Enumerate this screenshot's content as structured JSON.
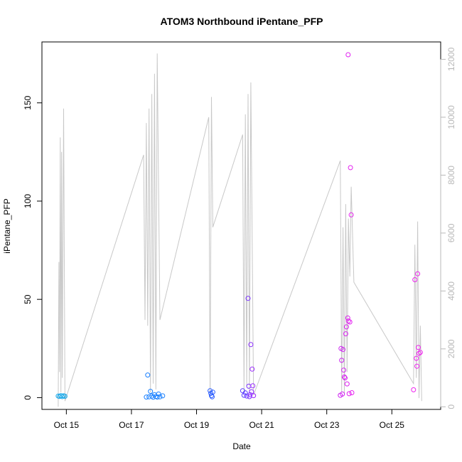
{
  "chart_data": {
    "type": "scatter",
    "title": "ATOM3 Northbound iPentane_PFP",
    "xlabel": "Date",
    "ylabel": "iPentane_PFP",
    "x_is_date": true,
    "xlim": [
      "2017-10-14T06:00",
      "2017-10-26T12:00"
    ],
    "ylim": [
      -6,
      181
    ],
    "y2lim": [
      -90,
      12600
    ],
    "x_ticks": [
      {
        "date": "2017-10-15",
        "label": "Oct 15"
      },
      {
        "date": "2017-10-17",
        "label": "Oct 17"
      },
      {
        "date": "2017-10-19",
        "label": "Oct 19"
      },
      {
        "date": "2017-10-21",
        "label": "Oct 21"
      },
      {
        "date": "2017-10-23",
        "label": "Oct 23"
      },
      {
        "date": "2017-10-25",
        "label": "Oct 25"
      }
    ],
    "y_ticks": [
      0,
      50,
      100,
      150
    ],
    "y2_ticks": [
      0,
      2000,
      4000,
      6000,
      8000,
      10000,
      12000
    ],
    "grid": false,
    "colors": {
      "altitude_line": "#c8c8c8",
      "right_axis": "#b8b8b8",
      "point_early": "#1aa8e8",
      "point_mid": "#3a3cff",
      "point_late": "#ee22ee"
    },
    "series": [
      {
        "points": [
          [
            "2017-10-14T18:00",
            0.8,
            "#1aa8e8"
          ],
          [
            "2017-10-14T19:00",
            0.6,
            "#1aa8e8"
          ],
          [
            "2017-10-14T20:00",
            1.0,
            "#1aa8e8"
          ],
          [
            "2017-10-14T21:00",
            0.5,
            "#1aa8e8"
          ],
          [
            "2017-10-14T22:00",
            0.9,
            "#1aa8e8"
          ],
          [
            "2017-10-14T23:00",
            0.7,
            "#1aa8e8"
          ],
          [
            "2017-10-17T12:00",
            11.5,
            "#1a80ff"
          ],
          [
            "2017-10-17T11:00",
            0.3,
            "#1a80ff"
          ],
          [
            "2017-10-17T13:00",
            0.4,
            "#1a80ff"
          ],
          [
            "2017-10-17T14:00",
            3.2,
            "#1a80ff"
          ],
          [
            "2017-10-17T15:00",
            0.8,
            "#1a80ff"
          ],
          [
            "2017-10-17T16:00",
            0.2,
            "#1a80ff"
          ],
          [
            "2017-10-17T17:00",
            1.5,
            "#1a80ff"
          ],
          [
            "2017-10-17T18:00",
            0.6,
            "#1a80ff"
          ],
          [
            "2017-10-17T19:00",
            0.3,
            "#1a80ff"
          ],
          [
            "2017-10-17T20:00",
            1.8,
            "#1a80ff"
          ],
          [
            "2017-10-17T21:00",
            0.4,
            "#1a80ff"
          ],
          [
            "2017-10-17T23:00",
            0.9,
            "#1a80ff"
          ],
          [
            "2017-10-19T10:00",
            3.5,
            "#2a5cff"
          ],
          [
            "2017-10-19T10:30",
            2.2,
            "#2a5cff"
          ],
          [
            "2017-10-19T11:00",
            1.0,
            "#2a5cff"
          ],
          [
            "2017-10-19T11:30",
            0.4,
            "#2a5cff"
          ],
          [
            "2017-10-19T12:00",
            2.8,
            "#2a5cff"
          ],
          [
            "2017-10-20T10:00",
            3.5,
            "#5a3cff"
          ],
          [
            "2017-10-20T11:00",
            1.2,
            "#5a3cff"
          ],
          [
            "2017-10-20T12:00",
            2.4,
            "#5a3cff"
          ],
          [
            "2017-10-20T13:00",
            0.8,
            "#6a3cff"
          ],
          [
            "2017-10-20T14:00",
            50.5,
            "#7a30ff"
          ],
          [
            "2017-10-20T14:30",
            5.8,
            "#7a30ff"
          ],
          [
            "2017-10-20T15:00",
            0.5,
            "#7a30ff"
          ],
          [
            "2017-10-20T15:30",
            1.5,
            "#8a30ff"
          ],
          [
            "2017-10-20T16:00",
            27.0,
            "#8a2aff"
          ],
          [
            "2017-10-20T16:30",
            3.0,
            "#8a2aff"
          ],
          [
            "2017-10-20T17:00",
            14.5,
            "#9a2aff"
          ],
          [
            "2017-10-20T17:30",
            6.0,
            "#9a2aff"
          ],
          [
            "2017-10-20T18:00",
            1.0,
            "#9a2aff"
          ],
          [
            "2017-10-23T10:00",
            1.2,
            "#cc22f0"
          ],
          [
            "2017-10-23T10:30",
            25.0,
            "#cc22f0"
          ],
          [
            "2017-10-23T11:00",
            19.0,
            "#cc22f0"
          ],
          [
            "2017-10-23T11:30",
            1.8,
            "#d022f0"
          ],
          [
            "2017-10-23T12:00",
            24.5,
            "#d022f0"
          ],
          [
            "2017-10-23T12:30",
            14.0,
            "#d422f0"
          ],
          [
            "2017-10-23T13:00",
            10.5,
            "#d422f0"
          ],
          [
            "2017-10-23T13:30",
            10.0,
            "#d822f0"
          ],
          [
            "2017-10-23T14:00",
            32.5,
            "#d822f0"
          ],
          [
            "2017-10-23T14:30",
            36.0,
            "#dc22f0"
          ],
          [
            "2017-10-23T15:00",
            7.0,
            "#dc22f0"
          ],
          [
            "2017-10-23T15:30",
            40.5,
            "#e022f0"
          ],
          [
            "2017-10-23T16:00",
            39.0,
            "#e022f0"
          ],
          [
            "2017-10-23T16:30",
            2.0,
            "#e022f0"
          ],
          [
            "2017-10-23T17:00",
            38.5,
            "#e422f0"
          ],
          [
            "2017-10-23T17:30",
            117.0,
            "#e422f0"
          ],
          [
            "2017-10-23T18:00",
            93.0,
            "#e822f0"
          ],
          [
            "2017-10-23T18:30",
            2.5,
            "#e822f0"
          ],
          [
            "2017-10-23T15:45",
            174.5,
            "#e022f0"
          ],
          [
            "2017-10-25T16:00",
            4.0,
            "#ee22ee"
          ],
          [
            "2017-10-25T17:00",
            60.0,
            "#ee22ee"
          ],
          [
            "2017-10-25T18:00",
            20.0,
            "#ee22ee"
          ],
          [
            "2017-10-25T18:30",
            16.0,
            "#ee22ee"
          ],
          [
            "2017-10-25T19:00",
            63.0,
            "#ee22ee"
          ],
          [
            "2017-10-25T19:30",
            25.5,
            "#ee22ee"
          ],
          [
            "2017-10-25T20:00",
            22.5,
            "#ee22ee"
          ],
          [
            "2017-10-25T21:00",
            23.0,
            "#ee22ee"
          ]
        ]
      }
    ],
    "secondary_line": {
      "axis": "right",
      "points": [
        [
          "2017-10-14T18:00",
          0
        ],
        [
          "2017-10-14T18:30",
          5000
        ],
        [
          "2017-10-14T19:00",
          1200
        ],
        [
          "2017-10-14T19:30",
          9300
        ],
        [
          "2017-10-14T20:00",
          500
        ],
        [
          "2017-10-14T20:30",
          8800
        ],
        [
          "2017-10-14T21:00",
          1000
        ],
        [
          "2017-10-14T22:00",
          10300
        ],
        [
          "2017-10-14T23:00",
          200
        ],
        [
          "2017-10-17T09:00",
          8700
        ],
        [
          "2017-10-17T10:00",
          3000
        ],
        [
          "2017-10-17T11:00",
          9800
        ],
        [
          "2017-10-17T12:00",
          2800
        ],
        [
          "2017-10-17T13:00",
          10300
        ],
        [
          "2017-10-17T14:00",
          500
        ],
        [
          "2017-10-17T15:00",
          10800
        ],
        [
          "2017-10-17T16:00",
          800
        ],
        [
          "2017-10-17T17:00",
          11500
        ],
        [
          "2017-10-17T18:00",
          600
        ],
        [
          "2017-10-17T19:00",
          12200
        ],
        [
          "2017-10-17T21:00",
          3000
        ],
        [
          "2017-10-19T09:00",
          10000
        ],
        [
          "2017-10-19T10:00",
          300
        ],
        [
          "2017-10-19T11:00",
          10700
        ],
        [
          "2017-10-19T12:00",
          6200
        ],
        [
          "2017-10-20T10:00",
          9400
        ],
        [
          "2017-10-20T11:00",
          500
        ],
        [
          "2017-10-20T12:00",
          10100
        ],
        [
          "2017-10-20T13:00",
          700
        ],
        [
          "2017-10-20T14:00",
          10800
        ],
        [
          "2017-10-20T15:00",
          500
        ],
        [
          "2017-10-20T16:00",
          11200
        ],
        [
          "2017-10-20T18:00",
          400
        ],
        [
          "2017-10-23T10:00",
          8500
        ],
        [
          "2017-10-23T11:00",
          500
        ],
        [
          "2017-10-23T12:00",
          6200
        ],
        [
          "2017-10-23T13:00",
          400
        ],
        [
          "2017-10-23T14:00",
          7000
        ],
        [
          "2017-10-23T15:00",
          1200
        ],
        [
          "2017-10-23T16:00",
          6500
        ],
        [
          "2017-10-23T17:00",
          4500
        ],
        [
          "2017-10-23T18:00",
          7600
        ],
        [
          "2017-10-23T20:00",
          4300
        ],
        [
          "2017-10-25T16:00",
          800
        ],
        [
          "2017-10-25T17:00",
          5600
        ],
        [
          "2017-10-25T18:00",
          1000
        ],
        [
          "2017-10-25T19:00",
          6400
        ],
        [
          "2017-10-25T20:00",
          300
        ],
        [
          "2017-10-25T21:00",
          2800
        ],
        [
          "2017-10-25T22:00",
          200
        ]
      ]
    }
  }
}
